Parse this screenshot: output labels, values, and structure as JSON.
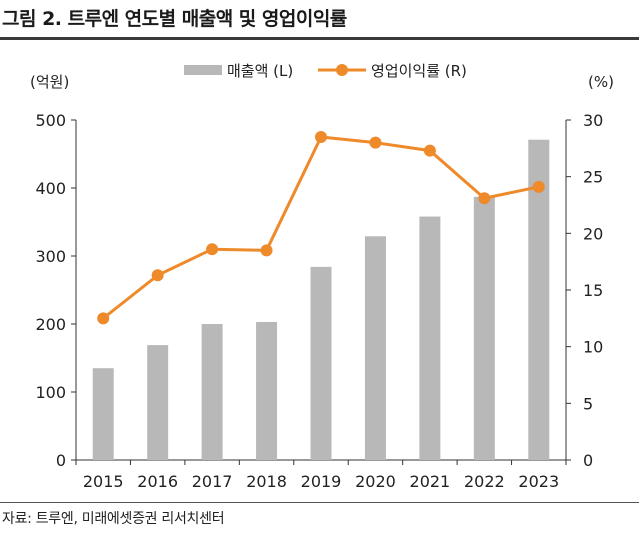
{
  "header": {
    "title": "그림 2. 트루엔 연도별 매출액 및 영업이익률"
  },
  "footer": {
    "source": "자료: 트루엔, 미래에셋증권 리서치센터"
  },
  "colors": {
    "bar": "#b8b8b8",
    "line": "#ee8a2a",
    "axis": "#333333"
  },
  "chart_data": {
    "type": "bar",
    "title": "그림 2. 트루엔 연도별 매출액 및 영업이익률",
    "categories": [
      "2015",
      "2016",
      "2017",
      "2018",
      "2019",
      "2020",
      "2021",
      "2022",
      "2023"
    ],
    "series": [
      {
        "name": "매출액 (L)",
        "type": "bar",
        "axis": "left",
        "values": [
          135,
          169,
          200,
          203,
          284,
          329,
          358,
          387,
          471
        ]
      },
      {
        "name": "영업이익률 (R)",
        "type": "line",
        "axis": "right",
        "values": [
          12.5,
          16.3,
          18.6,
          18.5,
          28.5,
          28.0,
          27.3,
          23.1,
          24.1
        ]
      }
    ],
    "y_left": {
      "label": "(억원)",
      "ylim": [
        0,
        500
      ],
      "ticks": [
        "0",
        "100",
        "200",
        "300",
        "400",
        "500"
      ]
    },
    "y_right": {
      "label": "(%)",
      "ylim": [
        0,
        30
      ],
      "ticks": [
        "0",
        "5",
        "10",
        "15",
        "20",
        "25",
        "30"
      ]
    },
    "legend": [
      "매출액 (L)",
      "영업이익률 (R)"
    ],
    "legend_position": "top-center",
    "grid": false
  }
}
